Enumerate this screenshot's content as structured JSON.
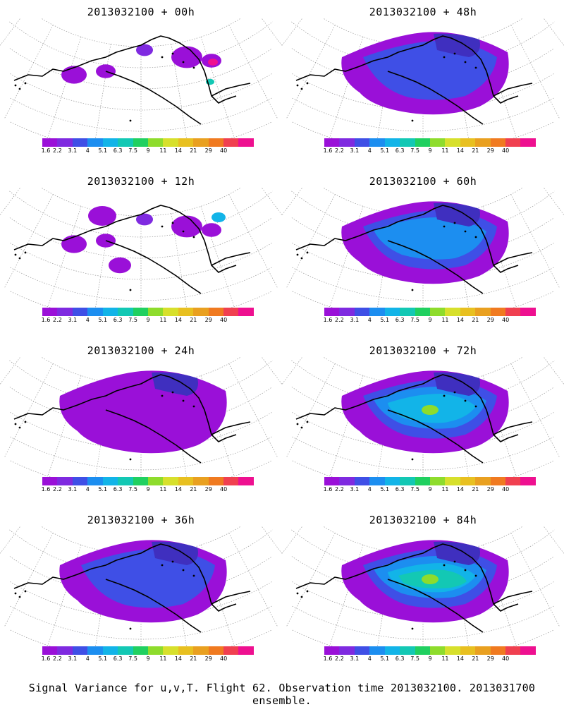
{
  "panels": [
    {
      "title": "2013032100 + 00h",
      "level": 0
    },
    {
      "title": "2013032100 + 48h",
      "level": 2
    },
    {
      "title": "2013032100 + 12h",
      "level": 0
    },
    {
      "title": "2013032100 + 60h",
      "level": 3
    },
    {
      "title": "2013032100 + 24h",
      "level": 1
    },
    {
      "title": "2013032100 + 72h",
      "level": 4
    },
    {
      "title": "2013032100 + 36h",
      "level": 2
    },
    {
      "title": "2013032100 + 84h",
      "level": 5
    }
  ],
  "colorbar": {
    "labels": [
      "1.6",
      "2.2",
      "3.1",
      "4",
      "5.1",
      "6.3",
      "7.5",
      "9",
      "11",
      "14",
      "21",
      "29",
      "40"
    ],
    "colors": [
      "#9a10d8",
      "#7f2ae0",
      "#3f4fe6",
      "#1c8ef0",
      "#12b4e8",
      "#13c8b4",
      "#20d060",
      "#8edc2c",
      "#d7e02c",
      "#e8c020",
      "#e9a020",
      "#f07a20",
      "#f04050",
      "#ee1090"
    ]
  },
  "footer": "Signal Variance for u,v,T. Flight 62. Observation time 2013032100. 2013031700 ensemble."
}
